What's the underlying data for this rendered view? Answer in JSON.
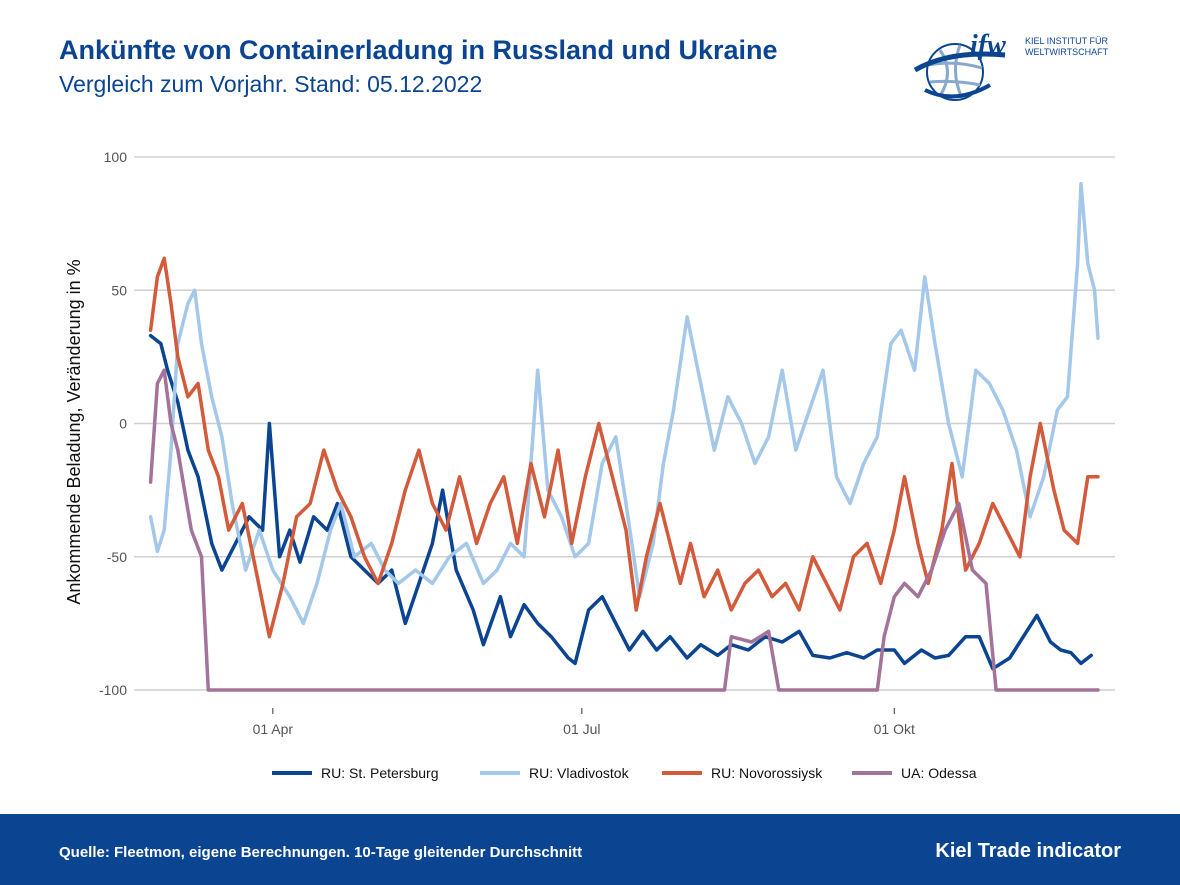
{
  "header": {
    "title": "Ankünfte von Containerladung in Russland und Ukraine",
    "subtitle": "Vergleich zum Vorjahr. Stand: 05.12.2022"
  },
  "logo": {
    "mark": "ifw",
    "line1": "KIEL INSTITUT FÜR",
    "line2": "WELTWIRTSCHAFT",
    "icon": "globe-icon"
  },
  "footer": {
    "source": "Quelle: Fleetmon, eigene Berechnungen. 10-Tage gleitender Durchschnitt",
    "brand": "Kiel Trade indicator"
  },
  "colors": {
    "brand_blue": "#0b4592",
    "grid": "#d0d0d0",
    "tick_text": "#555555"
  },
  "chart_data": {
    "type": "line",
    "ylabel": "Ankommende Beladung, Veränderung in %",
    "xlabel": "",
    "ylim": [
      -100,
      100
    ],
    "yticks": [
      {
        "v": -100,
        "label": "-100"
      },
      {
        "v": -50,
        "label": "-50"
      },
      {
        "v": 0,
        "label": "0"
      },
      {
        "v": 50,
        "label": "50"
      },
      {
        "v": 100,
        "label": "100"
      }
    ],
    "xlim": [
      "2022-02-20",
      "2022-12-05"
    ],
    "xticks": [
      {
        "date": "2022-04-01",
        "label": "01 Apr"
      },
      {
        "date": "2022-07-01",
        "label": "01 Jul"
      },
      {
        "date": "2022-10-01",
        "label": "01 Okt"
      }
    ],
    "grid": "horizontal",
    "legend_position": "bottom",
    "series": [
      {
        "name": "RU: St. Petersburg",
        "color": "#0b4592",
        "points": [
          [
            "2022-02-24",
            33
          ],
          [
            "2022-02-27",
            30
          ],
          [
            "2022-03-01",
            20
          ],
          [
            "2022-03-04",
            8
          ],
          [
            "2022-03-07",
            -10
          ],
          [
            "2022-03-10",
            -20
          ],
          [
            "2022-03-14",
            -45
          ],
          [
            "2022-03-17",
            -55
          ],
          [
            "2022-03-21",
            -45
          ],
          [
            "2022-03-25",
            -35
          ],
          [
            "2022-03-29",
            -40
          ],
          [
            "2022-03-31",
            0
          ],
          [
            "2022-04-03",
            -50
          ],
          [
            "2022-04-06",
            -40
          ],
          [
            "2022-04-09",
            -52
          ],
          [
            "2022-04-13",
            -35
          ],
          [
            "2022-04-17",
            -40
          ],
          [
            "2022-04-20",
            -30
          ],
          [
            "2022-04-24",
            -50
          ],
          [
            "2022-04-28",
            -55
          ],
          [
            "2022-05-02",
            -60
          ],
          [
            "2022-05-06",
            -55
          ],
          [
            "2022-05-10",
            -75
          ],
          [
            "2022-05-14",
            -60
          ],
          [
            "2022-05-18",
            -45
          ],
          [
            "2022-05-21",
            -25
          ],
          [
            "2022-05-25",
            -55
          ],
          [
            "2022-05-30",
            -70
          ],
          [
            "2022-06-02",
            -83
          ],
          [
            "2022-06-07",
            -65
          ],
          [
            "2022-06-10",
            -80
          ],
          [
            "2022-06-14",
            -68
          ],
          [
            "2022-06-18",
            -75
          ],
          [
            "2022-06-22",
            -80
          ],
          [
            "2022-06-27",
            -88
          ],
          [
            "2022-06-29",
            -90
          ],
          [
            "2022-07-03",
            -70
          ],
          [
            "2022-07-07",
            -65
          ],
          [
            "2022-07-11",
            -75
          ],
          [
            "2022-07-15",
            -85
          ],
          [
            "2022-07-19",
            -78
          ],
          [
            "2022-07-23",
            -85
          ],
          [
            "2022-07-27",
            -80
          ],
          [
            "2022-08-01",
            -88
          ],
          [
            "2022-08-05",
            -83
          ],
          [
            "2022-08-10",
            -87
          ],
          [
            "2022-08-14",
            -83
          ],
          [
            "2022-08-19",
            -85
          ],
          [
            "2022-08-24",
            -80
          ],
          [
            "2022-08-29",
            -82
          ],
          [
            "2022-09-03",
            -78
          ],
          [
            "2022-09-07",
            -87
          ],
          [
            "2022-09-12",
            -88
          ],
          [
            "2022-09-17",
            -86
          ],
          [
            "2022-09-22",
            -88
          ],
          [
            "2022-09-26",
            -85
          ],
          [
            "2022-10-01",
            -85
          ],
          [
            "2022-10-04",
            -90
          ],
          [
            "2022-10-09",
            -85
          ],
          [
            "2022-10-13",
            -88
          ],
          [
            "2022-10-17",
            -87
          ],
          [
            "2022-10-22",
            -80
          ],
          [
            "2022-10-26",
            -80
          ],
          [
            "2022-10-30",
            -92
          ],
          [
            "2022-11-04",
            -88
          ],
          [
            "2022-11-08",
            -80
          ],
          [
            "2022-11-12",
            -72
          ],
          [
            "2022-11-16",
            -82
          ],
          [
            "2022-11-19",
            -85
          ],
          [
            "2022-11-22",
            -86
          ],
          [
            "2022-11-25",
            -90
          ],
          [
            "2022-11-28",
            -87
          ]
        ]
      },
      {
        "name": "RU: Vladivostok",
        "color": "#a3c8ea",
        "points": [
          [
            "2022-02-24",
            -35
          ],
          [
            "2022-02-26",
            -48
          ],
          [
            "2022-02-28",
            -40
          ],
          [
            "2022-03-02",
            -10
          ],
          [
            "2022-03-04",
            30
          ],
          [
            "2022-03-07",
            45
          ],
          [
            "2022-03-09",
            50
          ],
          [
            "2022-03-11",
            30
          ],
          [
            "2022-03-14",
            10
          ],
          [
            "2022-03-17",
            -5
          ],
          [
            "2022-03-20",
            -30
          ],
          [
            "2022-03-24",
            -55
          ],
          [
            "2022-03-28",
            -40
          ],
          [
            "2022-04-01",
            -55
          ],
          [
            "2022-04-06",
            -65
          ],
          [
            "2022-04-10",
            -75
          ],
          [
            "2022-04-14",
            -60
          ],
          [
            "2022-04-18",
            -40
          ],
          [
            "2022-04-21",
            -30
          ],
          [
            "2022-04-25",
            -50
          ],
          [
            "2022-04-30",
            -45
          ],
          [
            "2022-05-04",
            -55
          ],
          [
            "2022-05-08",
            -60
          ],
          [
            "2022-05-13",
            -55
          ],
          [
            "2022-05-18",
            -60
          ],
          [
            "2022-05-23",
            -50
          ],
          [
            "2022-05-28",
            -45
          ],
          [
            "2022-06-02",
            -60
          ],
          [
            "2022-06-06",
            -55
          ],
          [
            "2022-06-10",
            -45
          ],
          [
            "2022-06-14",
            -50
          ],
          [
            "2022-06-18",
            20
          ],
          [
            "2022-06-21",
            -25
          ],
          [
            "2022-06-25",
            -35
          ],
          [
            "2022-06-29",
            -50
          ],
          [
            "2022-07-03",
            -45
          ],
          [
            "2022-07-07",
            -15
          ],
          [
            "2022-07-11",
            -5
          ],
          [
            "2022-07-14",
            -30
          ],
          [
            "2022-07-18",
            -65
          ],
          [
            "2022-07-22",
            -45
          ],
          [
            "2022-07-25",
            -15
          ],
          [
            "2022-07-28",
            5
          ],
          [
            "2022-08-01",
            40
          ],
          [
            "2022-08-05",
            15
          ],
          [
            "2022-08-09",
            -10
          ],
          [
            "2022-08-13",
            10
          ],
          [
            "2022-08-17",
            0
          ],
          [
            "2022-08-21",
            -15
          ],
          [
            "2022-08-25",
            -5
          ],
          [
            "2022-08-29",
            20
          ],
          [
            "2022-09-02",
            -10
          ],
          [
            "2022-09-06",
            5
          ],
          [
            "2022-09-10",
            20
          ],
          [
            "2022-09-14",
            -20
          ],
          [
            "2022-09-18",
            -30
          ],
          [
            "2022-09-22",
            -15
          ],
          [
            "2022-09-26",
            -5
          ],
          [
            "2022-09-30",
            30
          ],
          [
            "2022-10-03",
            35
          ],
          [
            "2022-10-07",
            20
          ],
          [
            "2022-10-10",
            55
          ],
          [
            "2022-10-13",
            30
          ],
          [
            "2022-10-17",
            0
          ],
          [
            "2022-10-21",
            -20
          ],
          [
            "2022-10-25",
            20
          ],
          [
            "2022-10-29",
            15
          ],
          [
            "2022-11-02",
            5
          ],
          [
            "2022-11-06",
            -10
          ],
          [
            "2022-11-10",
            -35
          ],
          [
            "2022-11-14",
            -20
          ],
          [
            "2022-11-18",
            5
          ],
          [
            "2022-11-21",
            10
          ],
          [
            "2022-11-24",
            60
          ],
          [
            "2022-11-25",
            90
          ],
          [
            "2022-11-27",
            60
          ],
          [
            "2022-11-29",
            50
          ],
          [
            "2022-11-30",
            32
          ]
        ]
      },
      {
        "name": "RU: Novorossiysk",
        "color": "#d35a3a",
        "points": [
          [
            "2022-02-24",
            35
          ],
          [
            "2022-02-26",
            55
          ],
          [
            "2022-02-28",
            62
          ],
          [
            "2022-03-02",
            45
          ],
          [
            "2022-03-04",
            25
          ],
          [
            "2022-03-07",
            10
          ],
          [
            "2022-03-10",
            15
          ],
          [
            "2022-03-13",
            -10
          ],
          [
            "2022-03-16",
            -20
          ],
          [
            "2022-03-19",
            -40
          ],
          [
            "2022-03-23",
            -30
          ],
          [
            "2022-03-27",
            -55
          ],
          [
            "2022-03-31",
            -80
          ],
          [
            "2022-04-04",
            -60
          ],
          [
            "2022-04-08",
            -35
          ],
          [
            "2022-04-12",
            -30
          ],
          [
            "2022-04-16",
            -10
          ],
          [
            "2022-04-20",
            -25
          ],
          [
            "2022-04-24",
            -35
          ],
          [
            "2022-04-28",
            -50
          ],
          [
            "2022-05-02",
            -60
          ],
          [
            "2022-05-06",
            -45
          ],
          [
            "2022-05-10",
            -25
          ],
          [
            "2022-05-14",
            -10
          ],
          [
            "2022-05-18",
            -30
          ],
          [
            "2022-05-22",
            -40
          ],
          [
            "2022-05-26",
            -20
          ],
          [
            "2022-05-31",
            -45
          ],
          [
            "2022-06-04",
            -30
          ],
          [
            "2022-06-08",
            -20
          ],
          [
            "2022-06-12",
            -45
          ],
          [
            "2022-06-16",
            -15
          ],
          [
            "2022-06-20",
            -35
          ],
          [
            "2022-06-24",
            -10
          ],
          [
            "2022-06-28",
            -45
          ],
          [
            "2022-07-02",
            -20
          ],
          [
            "2022-07-06",
            0
          ],
          [
            "2022-07-10",
            -20
          ],
          [
            "2022-07-14",
            -40
          ],
          [
            "2022-07-17",
            -70
          ],
          [
            "2022-07-20",
            -50
          ],
          [
            "2022-07-24",
            -30
          ],
          [
            "2022-07-27",
            -45
          ],
          [
            "2022-07-30",
            -60
          ],
          [
            "2022-08-02",
            -45
          ],
          [
            "2022-08-06",
            -65
          ],
          [
            "2022-08-10",
            -55
          ],
          [
            "2022-08-14",
            -70
          ],
          [
            "2022-08-18",
            -60
          ],
          [
            "2022-08-22",
            -55
          ],
          [
            "2022-08-26",
            -65
          ],
          [
            "2022-08-30",
            -60
          ],
          [
            "2022-09-03",
            -70
          ],
          [
            "2022-09-07",
            -50
          ],
          [
            "2022-09-11",
            -60
          ],
          [
            "2022-09-15",
            -70
          ],
          [
            "2022-09-19",
            -50
          ],
          [
            "2022-09-23",
            -45
          ],
          [
            "2022-09-27",
            -60
          ],
          [
            "2022-10-01",
            -40
          ],
          [
            "2022-10-04",
            -20
          ],
          [
            "2022-10-08",
            -45
          ],
          [
            "2022-10-11",
            -60
          ],
          [
            "2022-10-15",
            -40
          ],
          [
            "2022-10-18",
            -15
          ],
          [
            "2022-10-22",
            -55
          ],
          [
            "2022-10-26",
            -45
          ],
          [
            "2022-10-30",
            -30
          ],
          [
            "2022-11-03",
            -40
          ],
          [
            "2022-11-07",
            -50
          ],
          [
            "2022-11-10",
            -20
          ],
          [
            "2022-11-13",
            0
          ],
          [
            "2022-11-17",
            -25
          ],
          [
            "2022-11-20",
            -40
          ],
          [
            "2022-11-24",
            -45
          ],
          [
            "2022-11-27",
            -20
          ],
          [
            "2022-11-30",
            -20
          ]
        ]
      },
      {
        "name": "UA: Odessa",
        "color": "#a3739a",
        "points": [
          [
            "2022-02-24",
            -22
          ],
          [
            "2022-02-26",
            15
          ],
          [
            "2022-02-28",
            20
          ],
          [
            "2022-03-02",
            0
          ],
          [
            "2022-03-04",
            -10
          ],
          [
            "2022-03-06",
            -25
          ],
          [
            "2022-03-08",
            -40
          ],
          [
            "2022-03-11",
            -50
          ],
          [
            "2022-03-13",
            -100
          ],
          [
            "2022-08-12",
            -100
          ],
          [
            "2022-08-14",
            -80
          ],
          [
            "2022-08-20",
            -82
          ],
          [
            "2022-08-25",
            -78
          ],
          [
            "2022-08-28",
            -100
          ],
          [
            "2022-09-26",
            -100
          ],
          [
            "2022-09-28",
            -80
          ],
          [
            "2022-10-01",
            -65
          ],
          [
            "2022-10-04",
            -60
          ],
          [
            "2022-10-08",
            -65
          ],
          [
            "2022-10-12",
            -55
          ],
          [
            "2022-10-16",
            -40
          ],
          [
            "2022-10-20",
            -30
          ],
          [
            "2022-10-24",
            -55
          ],
          [
            "2022-10-28",
            -60
          ],
          [
            "2022-10-31",
            -100
          ],
          [
            "2022-11-30",
            -100
          ]
        ]
      }
    ]
  }
}
